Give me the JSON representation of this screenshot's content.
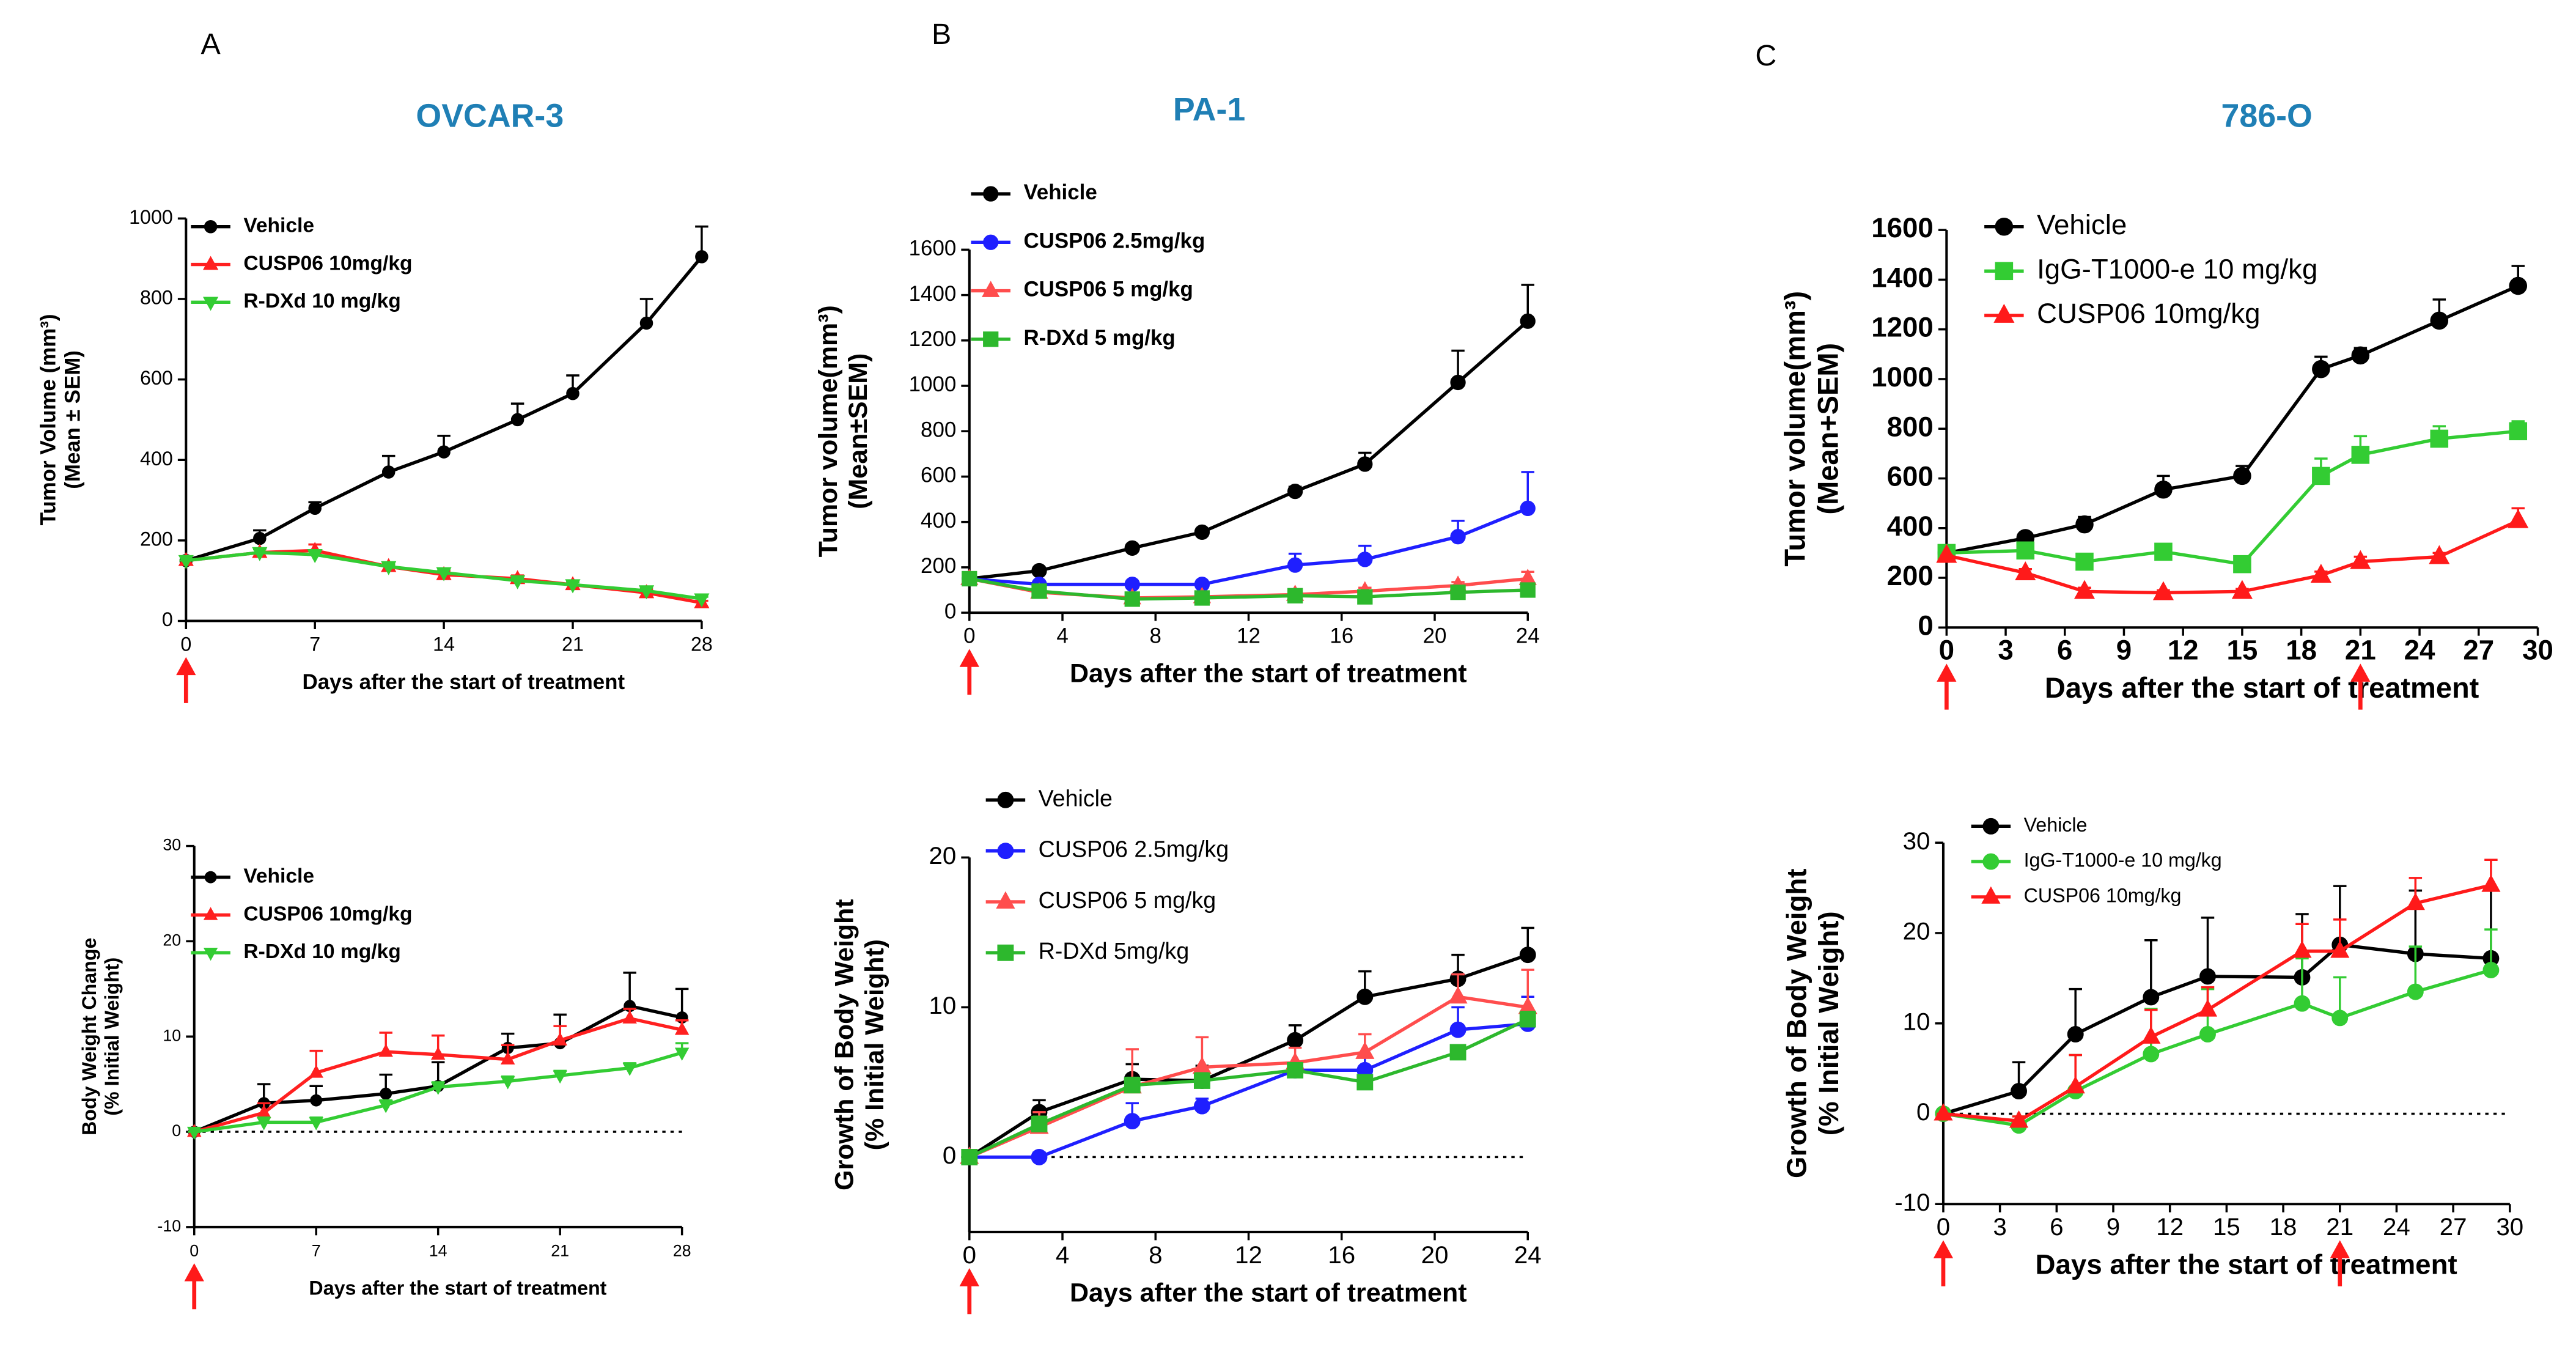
{
  "panel_labels": [
    "A",
    "B",
    "C"
  ],
  "chart_data": [
    {
      "type": "line",
      "title": "OVCAR-3",
      "ylabel": [
        "Tumor Volume  (mm³)",
        "(Mean ± SEM)"
      ],
      "xlabel": "Days after the start of treatment",
      "x": [
        0,
        4,
        7,
        11,
        14,
        18,
        21,
        25,
        28
      ],
      "xlim": [
        0,
        28
      ],
      "xticks": [
        0,
        7,
        14,
        21,
        28
      ],
      "ylim": [
        0,
        1000
      ],
      "yticks": [
        0,
        200,
        400,
        600,
        800,
        1000
      ],
      "arrows": [
        0
      ],
      "series": [
        {
          "name": "Vehicle",
          "color": "#000000",
          "marker": "circle",
          "values": [
            150,
            205,
            280,
            370,
            420,
            500,
            565,
            740,
            905
          ],
          "errors": [
            0,
            20,
            15,
            40,
            40,
            40,
            45,
            60,
            75
          ]
        },
        {
          "name": "CUSP06 10mg/kg",
          "color": "#ff2020",
          "marker": "triangle",
          "values": [
            150,
            170,
            175,
            135,
            115,
            105,
            90,
            70,
            45
          ],
          "errors": [
            0,
            10,
            15,
            5,
            10,
            8,
            8,
            8,
            5
          ]
        },
        {
          "name": "R-DXd 10 mg/kg",
          "color": "#33cc33",
          "marker": "triangle-down",
          "values": [
            150,
            170,
            165,
            135,
            120,
            100,
            90,
            75,
            55
          ],
          "errors": [
            0,
            8,
            8,
            5,
            8,
            6,
            6,
            8,
            5
          ]
        }
      ]
    },
    {
      "type": "line",
      "ylabel": [
        "Body Weight Change",
        "(% Initial Weight)"
      ],
      "xlabel": "Days after the start of treatment",
      "x": [
        0,
        4,
        7,
        11,
        14,
        18,
        21,
        25,
        28
      ],
      "xlim": [
        0,
        28
      ],
      "xticks": [
        0,
        7,
        14,
        21,
        28
      ],
      "ylim": [
        -10,
        30
      ],
      "yticks": [
        -10,
        0,
        10,
        20,
        30
      ],
      "reference_line": 0,
      "arrows": [
        0
      ],
      "series": [
        {
          "name": "Vehicle",
          "color": "#000000",
          "marker": "circle",
          "values": [
            0,
            3,
            3.3,
            4,
            4.8,
            8.8,
            9.3,
            13.2,
            12
          ],
          "errors": [
            0,
            2,
            1.5,
            2,
            2.5,
            1.5,
            3,
            3.5,
            3
          ]
        },
        {
          "name": "CUSP06  10mg/kg",
          "color": "#ff2020",
          "marker": "triangle",
          "values": [
            0,
            2,
            6.2,
            8.4,
            8.1,
            7.6,
            9.6,
            11.9,
            10.7
          ],
          "errors": [
            0,
            1,
            2.3,
            2,
            2,
            1.5,
            1.5,
            1,
            1
          ]
        },
        {
          "name": "R-DXd 10 mg/kg",
          "color": "#33cc33",
          "marker": "triangle-down",
          "values": [
            0,
            1,
            1,
            2.8,
            4.7,
            5.3,
            5.9,
            6.7,
            8.3
          ],
          "errors": [
            0,
            0.5,
            0.5,
            0.5,
            0.5,
            0.5,
            0.5,
            0.5,
            1
          ]
        }
      ]
    },
    {
      "type": "line",
      "title": "PA-1",
      "ylabel": [
        "Tumor volume(mm³)",
        "(Mean±SEM)"
      ],
      "xlabel": "Days  after the start of treatment",
      "x": [
        0,
        3,
        7,
        10,
        14,
        17,
        21,
        24
      ],
      "xlim": [
        0,
        24
      ],
      "xticks": [
        0,
        4,
        8,
        12,
        16,
        20,
        24
      ],
      "ylim": [
        0,
        1600
      ],
      "yticks": [
        0,
        200,
        400,
        600,
        800,
        1000,
        1200,
        1400,
        1600
      ],
      "arrows": [
        0
      ],
      "series": [
        {
          "name": "Vehicle",
          "color": "#000000",
          "marker": "circle",
          "values": [
            150,
            185,
            285,
            355,
            535,
            655,
            1015,
            1285
          ],
          "errors": [
            0,
            10,
            15,
            15,
            20,
            50,
            140,
            160
          ]
        },
        {
          "name": "CUSP06 2.5mg/kg",
          "color": "#1f1fff",
          "marker": "circle",
          "values": [
            150,
            125,
            125,
            125,
            210,
            235,
            335,
            460
          ],
          "errors": [
            0,
            10,
            15,
            15,
            50,
            60,
            70,
            160
          ]
        },
        {
          "name": "CUSP06 5 mg/kg",
          "color": "#ff4d4d",
          "marker": "triangle",
          "values": [
            150,
            90,
            65,
            70,
            80,
            95,
            120,
            150
          ],
          "errors": [
            0,
            10,
            10,
            10,
            10,
            15,
            15,
            30
          ]
        },
        {
          "name": "R-DXd 5 mg/kg",
          "color": "#2db82d",
          "marker": "square",
          "values": [
            150,
            95,
            60,
            65,
            75,
            70,
            90,
            100
          ],
          "errors": [
            0,
            8,
            8,
            8,
            8,
            8,
            10,
            10
          ]
        }
      ]
    },
    {
      "type": "line",
      "ylabel": [
        "Growth of Body Weight",
        "(% Initial Weight)"
      ],
      "xlabel": "Days  after the start of treatment",
      "x": [
        0,
        3,
        7,
        10,
        14,
        17,
        21,
        24
      ],
      "xlim": [
        0,
        24
      ],
      "xticks": [
        0,
        4,
        8,
        12,
        16,
        20,
        24
      ],
      "ylim": [
        -5,
        20
      ],
      "yticks": [
        0,
        10,
        20
      ],
      "reference_line": 0,
      "arrows": [
        0
      ],
      "series": [
        {
          "name": "Vehicle",
          "color": "#000000",
          "marker": "circle",
          "values": [
            0,
            3,
            5.2,
            5.1,
            7.8,
            10.7,
            11.9,
            13.5
          ],
          "errors": [
            0,
            0.8,
            1,
            1,
            1,
            1.7,
            1.6,
            1.8
          ]
        },
        {
          "name": "CUSP06 2.5mg/kg",
          "color": "#1f1fff",
          "marker": "circle",
          "values": [
            0,
            0,
            2.4,
            3.4,
            5.8,
            5.8,
            8.5,
            8.9
          ],
          "errors": [
            0,
            0.3,
            1.2,
            0.5,
            0.5,
            1,
            1.5,
            1.8
          ]
        },
        {
          "name": "CUSP06 5 mg/kg",
          "color": "#ff4d4d",
          "marker": "triangle",
          "values": [
            0,
            2,
            4.7,
            6,
            6.3,
            7,
            10.7,
            10
          ],
          "errors": [
            0,
            1,
            2.5,
            2,
            1,
            1.2,
            1.5,
            2.5
          ]
        },
        {
          "name": "R-DXd 5mg/kg",
          "color": "#2db82d",
          "marker": "square",
          "values": [
            0,
            2.2,
            4.8,
            5.1,
            5.8,
            5,
            7,
            9.2
          ],
          "errors": [
            0,
            0.5,
            0.5,
            0.5,
            0.3,
            0.3,
            0.3,
            0.5
          ]
        }
      ]
    },
    {
      "type": "line",
      "title": "786-O",
      "ylabel": [
        "Tumor volume(mm³)",
        "(Mean+SEM)"
      ],
      "xlabel": "Days  after the start of treatment",
      "x": [
        0,
        4,
        7,
        11,
        15,
        19,
        21,
        25,
        29
      ],
      "xlim": [
        0,
        30
      ],
      "xticks": [
        0,
        3,
        6,
        9,
        12,
        15,
        18,
        21,
        24,
        27,
        30
      ],
      "ylim": [
        0,
        1600
      ],
      "yticks": [
        0,
        200,
        400,
        600,
        800,
        1000,
        1200,
        1400,
        1600
      ],
      "arrows": [
        0,
        21
      ],
      "series": [
        {
          "name": "Vehicle",
          "color": "#000000",
          "marker": "circle",
          "values": [
            300,
            360,
            415,
            555,
            610,
            1040,
            1095,
            1235,
            1375
          ],
          "errors": [
            0,
            20,
            30,
            55,
            40,
            50,
            30,
            85,
            80
          ]
        },
        {
          "name": "IgG-T1000-e 10 mg/kg",
          "color": "#33cc33",
          "marker": "square",
          "values": [
            300,
            310,
            265,
            305,
            255,
            610,
            695,
            760,
            790
          ],
          "errors": [
            0,
            15,
            20,
            15,
            10,
            70,
            75,
            50,
            40
          ]
        },
        {
          "name": "CUSP06 10mg/kg",
          "color": "#ff1a1a",
          "marker": "triangle",
          "values": [
            290,
            220,
            145,
            140,
            145,
            210,
            265,
            285,
            430
          ],
          "errors": [
            0,
            15,
            15,
            10,
            10,
            15,
            20,
            15,
            50
          ]
        }
      ]
    },
    {
      "type": "line",
      "ylabel": [
        "Growth of Body Weight",
        "(% Initial Weight)"
      ],
      "xlabel": "Days  after the start of treatment",
      "x": [
        0,
        4,
        7,
        11,
        14,
        19,
        21,
        25,
        29
      ],
      "xlim": [
        0,
        30
      ],
      "xticks": [
        0,
        3,
        6,
        9,
        12,
        15,
        18,
        21,
        24,
        27,
        30
      ],
      "ylim": [
        -10,
        30
      ],
      "yticks": [
        -10,
        0,
        10,
        20,
        30
      ],
      "reference_line": 0,
      "arrows": [
        0,
        21
      ],
      "series": [
        {
          "name": "Vehicle",
          "color": "#000000",
          "marker": "circle",
          "values": [
            0,
            2.5,
            8.8,
            12.9,
            15.2,
            15.1,
            18.7,
            17.7,
            17.2
          ],
          "errors": [
            0,
            3.2,
            5,
            6.3,
            6.5,
            7,
            6.5,
            7,
            7.8
          ]
        },
        {
          "name": "IgG-T1000-e 10 mg/kg",
          "color": "#33cc33",
          "marker": "circle",
          "values": [
            0,
            -1.3,
            2.5,
            6.6,
            8.8,
            12.2,
            10.6,
            13.5,
            15.9
          ],
          "errors": [
            0,
            1,
            4,
            5,
            5,
            5,
            4.5,
            5,
            4.5
          ]
        },
        {
          "name": "CUSP06 10mg/kg",
          "color": "#ff1a1a",
          "marker": "triangle",
          "values": [
            0,
            -0.8,
            3,
            8.5,
            11.5,
            18,
            18,
            23.3,
            25.3
          ],
          "errors": [
            0,
            0.5,
            3.5,
            3,
            2.5,
            3,
            3.5,
            2.8,
            2.8
          ]
        }
      ]
    }
  ]
}
